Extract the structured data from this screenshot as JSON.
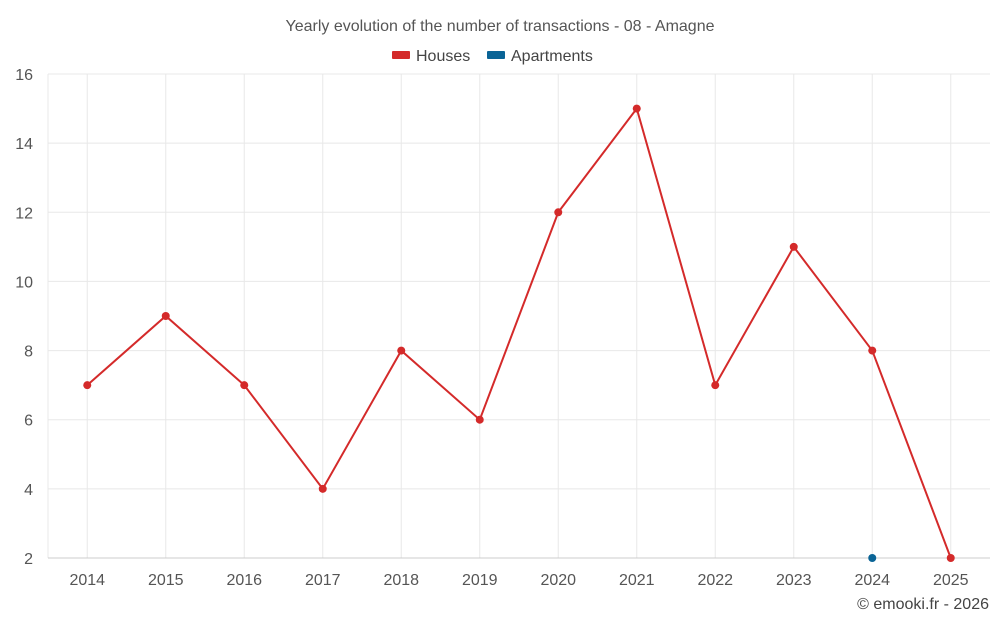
{
  "chart_data": {
    "type": "line",
    "title": "Yearly evolution of the number of transactions - 08 - Amagne",
    "categories": [
      "2014",
      "2015",
      "2016",
      "2017",
      "2018",
      "2019",
      "2020",
      "2021",
      "2022",
      "2023",
      "2024",
      "2025"
    ],
    "series": [
      {
        "name": "Houses",
        "color": "#d42a2a",
        "values": [
          7,
          9,
          7,
          4,
          8,
          6,
          12,
          15,
          7,
          11,
          8,
          2
        ]
      },
      {
        "name": "Apartments",
        "color": "#0a6496",
        "values": [
          null,
          null,
          null,
          null,
          null,
          null,
          null,
          null,
          null,
          null,
          2,
          null
        ]
      }
    ],
    "ylim": [
      2,
      16
    ],
    "yticks": [
      2,
      4,
      6,
      8,
      10,
      12,
      14,
      16
    ],
    "xlabel": "",
    "ylabel": "",
    "grid": true,
    "legend_position": "top-center"
  },
  "credit": "© emooki.fr - 2026"
}
